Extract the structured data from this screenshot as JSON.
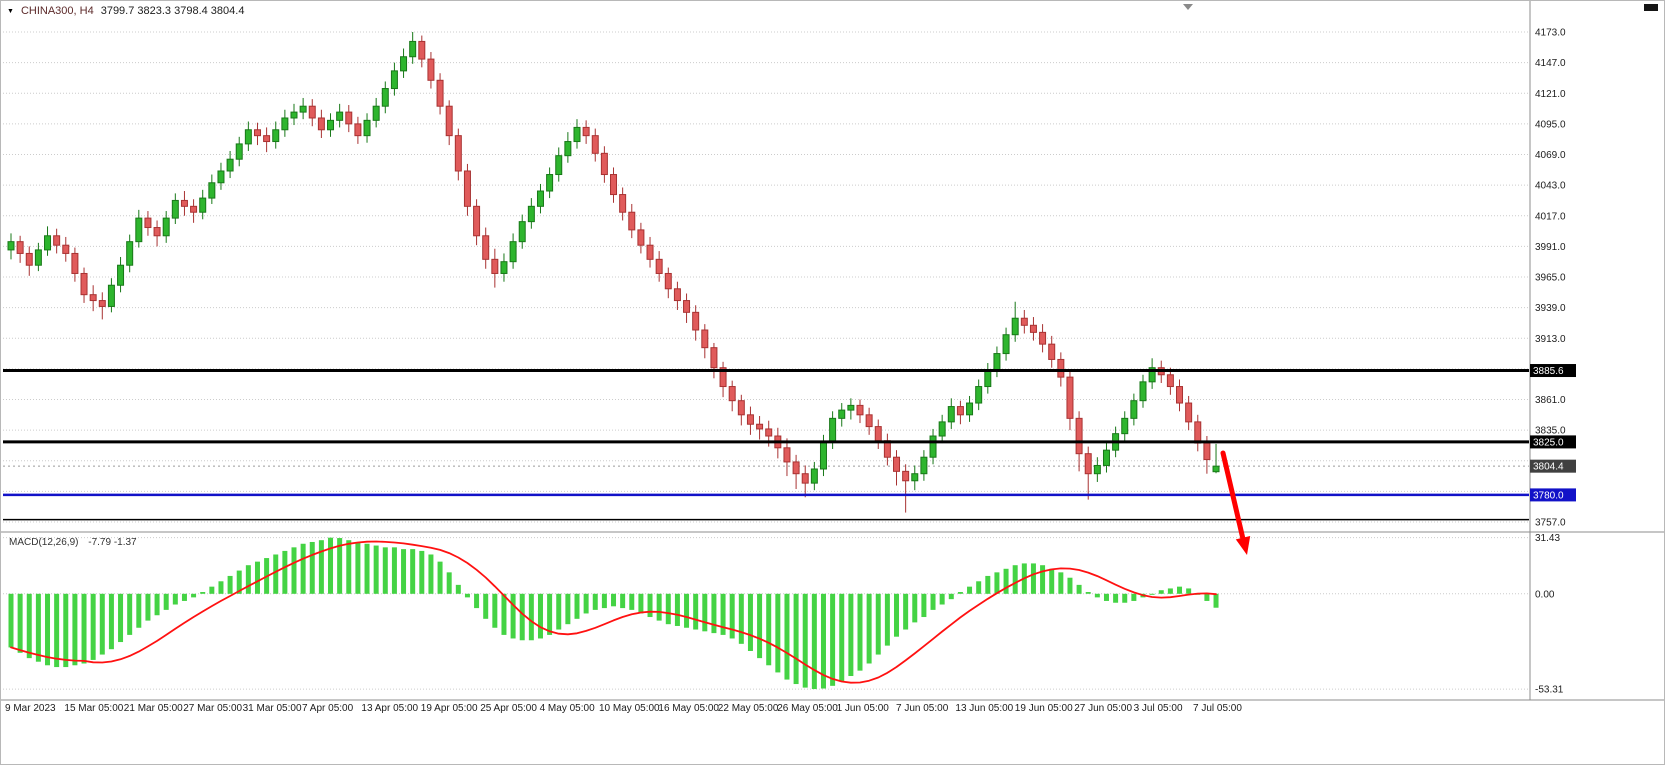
{
  "header": {
    "symbol_period": "CHINA300, H4",
    "ohlc": "3799.7 3823.3 3798.4 3804.4"
  },
  "colors": {
    "bull": "#2eb52e",
    "bull_border": "#187818",
    "bear": "#e05b5b",
    "bear_border": "#a83232",
    "macd_hist": "#44d344",
    "macd_signal": "#ff1111",
    "grid": "#cccccc",
    "arrow": "#ff0000"
  },
  "chart_data": {
    "type": "candlestick",
    "title": "CHINA300, H4",
    "symbol": "CHINA300",
    "timeframe": "H4",
    "grid": "horizontal-dotted",
    "current_bar": {
      "open": 3799.7,
      "high": 3823.3,
      "low": 3798.4,
      "close": 3804.4
    },
    "price_axis": {
      "min": 3757.0,
      "max": 4173.0,
      "tick_step": 26,
      "all_ticks": [
        4173,
        4147,
        4121,
        4095,
        4069,
        4043,
        4017,
        3991,
        3965,
        3939,
        3913,
        3887,
        3861,
        3835,
        3809,
        3783,
        3757
      ],
      "visible_labels": [
        "4173.0",
        "4147.0",
        "4121.0",
        "4095.0",
        "4069.0",
        "4043.0",
        "4017.0",
        "3991.0",
        "3965.0",
        "3939.0",
        "3913.0",
        "3861.0",
        "3835.0",
        "3757.0"
      ]
    },
    "levels": [
      {
        "value": 3885.6,
        "label": "3885.6",
        "color": "#000000",
        "width": 3
      },
      {
        "value": 3825.0,
        "label": "3825.0",
        "color": "#000000",
        "width": 3
      },
      {
        "value": 3780.0,
        "label": "3780.0",
        "color": "#1212c8",
        "width": 2.5
      },
      {
        "value": 3759.0,
        "label": "",
        "color": "#000000",
        "width": 1.5
      }
    ],
    "current_price": {
      "value": 3804.4,
      "label": "3804.4",
      "color": "#404040"
    },
    "candles": [
      [
        3988,
        4002,
        3980,
        3995
      ],
      [
        3995,
        4000,
        3977,
        3985
      ],
      [
        3985,
        3991,
        3966,
        3975
      ],
      [
        3975,
        3994,
        3970,
        3988
      ],
      [
        3988,
        4008,
        3983,
        4000
      ],
      [
        4000,
        4006,
        3985,
        3992
      ],
      [
        3992,
        3999,
        3978,
        3985
      ],
      [
        3985,
        3990,
        3961,
        3968
      ],
      [
        3968,
        3973,
        3943,
        3950
      ],
      [
        3950,
        3958,
        3936,
        3945
      ],
      [
        3945,
        3952,
        3929,
        3940
      ],
      [
        3940,
        3964,
        3935,
        3958
      ],
      [
        3958,
        3982,
        3952,
        3975
      ],
      [
        3975,
        4001,
        3969,
        3995
      ],
      [
        3995,
        4022,
        3990,
        4015
      ],
      [
        4015,
        4021,
        4000,
        4007
      ],
      [
        4007,
        4013,
        3991,
        4000
      ],
      [
        4000,
        4021,
        3994,
        4015
      ],
      [
        4015,
        4036,
        4010,
        4030
      ],
      [
        4030,
        4038,
        4017,
        4025
      ],
      [
        4025,
        4031,
        4011,
        4020
      ],
      [
        4020,
        4039,
        4014,
        4032
      ],
      [
        4032,
        4052,
        4027,
        4045
      ],
      [
        4045,
        4062,
        4039,
        4055
      ],
      [
        4055,
        4072,
        4049,
        4065
      ],
      [
        4065,
        4084,
        4059,
        4078
      ],
      [
        4078,
        4097,
        4072,
        4090
      ],
      [
        4090,
        4096,
        4077,
        4085
      ],
      [
        4085,
        4092,
        4071,
        4080
      ],
      [
        4080,
        4097,
        4074,
        4090
      ],
      [
        4090,
        4107,
        4084,
        4100
      ],
      [
        4100,
        4112,
        4094,
        4105
      ],
      [
        4105,
        4117,
        4099,
        4110
      ],
      [
        4110,
        4116,
        4093,
        4100
      ],
      [
        4100,
        4107,
        4083,
        4090
      ],
      [
        4090,
        4104,
        4084,
        4098
      ],
      [
        4098,
        4112,
        4092,
        4105
      ],
      [
        4105,
        4111,
        4088,
        4095
      ],
      [
        4095,
        4101,
        4078,
        4085
      ],
      [
        4085,
        4104,
        4079,
        4098
      ],
      [
        4098,
        4117,
        4092,
        4110
      ],
      [
        4110,
        4131,
        4104,
        4125
      ],
      [
        4125,
        4147,
        4119,
        4140
      ],
      [
        4140,
        4159,
        4134,
        4152
      ],
      [
        4152,
        4173,
        4146,
        4165
      ],
      [
        4165,
        4170,
        4143,
        4150
      ],
      [
        4150,
        4156,
        4125,
        4132
      ],
      [
        4132,
        4138,
        4103,
        4110
      ],
      [
        4110,
        4115,
        4077,
        4085
      ],
      [
        4085,
        4091,
        4047,
        4055
      ],
      [
        4055,
        4061,
        4017,
        4025
      ],
      [
        4025,
        4031,
        3992,
        4000
      ],
      [
        4000,
        4007,
        3972,
        3980
      ],
      [
        3980,
        3989,
        3956,
        3968
      ],
      [
        3968,
        3985,
        3961,
        3978
      ],
      [
        3978,
        4002,
        3972,
        3995
      ],
      [
        3995,
        4018,
        3989,
        4012
      ],
      [
        4012,
        4032,
        4006,
        4025
      ],
      [
        4025,
        4044,
        4019,
        4038
      ],
      [
        4038,
        4058,
        4032,
        4052
      ],
      [
        4052,
        4075,
        4046,
        4068
      ],
      [
        4068,
        4088,
        4062,
        4080
      ],
      [
        4080,
        4099,
        4074,
        4092
      ],
      [
        4092,
        4098,
        4078,
        4085
      ],
      [
        4085,
        4091,
        4063,
        4070
      ],
      [
        4070,
        4076,
        4045,
        4052
      ],
      [
        4052,
        4058,
        4028,
        4035
      ],
      [
        4035,
        4041,
        4013,
        4020
      ],
      [
        4020,
        4027,
        3998,
        4005
      ],
      [
        4005,
        4011,
        3985,
        3992
      ],
      [
        3992,
        3999,
        3973,
        3980
      ],
      [
        3980,
        3987,
        3961,
        3968
      ],
      [
        3968,
        3973,
        3947,
        3955
      ],
      [
        3955,
        3961,
        3937,
        3945
      ],
      [
        3945,
        3951,
        3926,
        3935
      ],
      [
        3935,
        3941,
        3911,
        3920
      ],
      [
        3920,
        3925,
        3896,
        3905
      ],
      [
        3905,
        3909,
        3879,
        3888
      ],
      [
        3888,
        3893,
        3863,
        3872
      ],
      [
        3872,
        3877,
        3851,
        3860
      ],
      [
        3860,
        3865,
        3839,
        3848
      ],
      [
        3848,
        3855,
        3831,
        3840
      ],
      [
        3840,
        3847,
        3827,
        3836
      ],
      [
        3836,
        3843,
        3821,
        3830
      ],
      [
        3830,
        3837,
        3811,
        3820
      ],
      [
        3820,
        3828,
        3796,
        3808
      ],
      [
        3808,
        3814,
        3785,
        3798
      ],
      [
        3798,
        3805,
        3778,
        3790
      ],
      [
        3790,
        3808,
        3784,
        3802
      ],
      [
        3802,
        3831,
        3796,
        3825
      ],
      [
        3825,
        3851,
        3819,
        3845
      ],
      [
        3845,
        3858,
        3838,
        3852
      ],
      [
        3852,
        3862,
        3844,
        3856
      ],
      [
        3856,
        3861,
        3841,
        3848
      ],
      [
        3848,
        3854,
        3831,
        3838
      ],
      [
        3838,
        3844,
        3819,
        3826
      ],
      [
        3826,
        3832,
        3805,
        3812
      ],
      [
        3812,
        3818,
        3788,
        3800
      ],
      [
        3800,
        3806,
        3765,
        3792
      ],
      [
        3792,
        3805,
        3784,
        3798
      ],
      [
        3798,
        3818,
        3792,
        3812
      ],
      [
        3812,
        3836,
        3806,
        3830
      ],
      [
        3830,
        3848,
        3824,
        3842
      ],
      [
        3842,
        3862,
        3836,
        3855
      ],
      [
        3855,
        3860,
        3840,
        3848
      ],
      [
        3848,
        3864,
        3842,
        3858
      ],
      [
        3858,
        3878,
        3852,
        3872
      ],
      [
        3872,
        3892,
        3866,
        3886
      ],
      [
        3886,
        3906,
        3880,
        3900
      ],
      [
        3900,
        3922,
        3894,
        3916
      ],
      [
        3916,
        3944,
        3910,
        3930
      ],
      [
        3930,
        3937,
        3917,
        3924
      ],
      [
        3924,
        3931,
        3911,
        3918
      ],
      [
        3918,
        3925,
        3901,
        3908
      ],
      [
        3908,
        3915,
        3888,
        3895
      ],
      [
        3895,
        3901,
        3872,
        3880
      ],
      [
        3880,
        3886,
        3835,
        3845
      ],
      [
        3845,
        3851,
        3800,
        3815
      ],
      [
        3815,
        3821,
        3776,
        3798
      ],
      [
        3798,
        3812,
        3791,
        3805
      ],
      [
        3805,
        3824,
        3799,
        3818
      ],
      [
        3818,
        3838,
        3812,
        3832
      ],
      [
        3832,
        3851,
        3826,
        3845
      ],
      [
        3845,
        3866,
        3839,
        3860
      ],
      [
        3860,
        3882,
        3854,
        3876
      ],
      [
        3876,
        3896,
        3870,
        3888
      ],
      [
        3888,
        3894,
        3875,
        3882
      ],
      [
        3882,
        3888,
        3865,
        3872
      ],
      [
        3872,
        3878,
        3851,
        3858
      ],
      [
        3858,
        3864,
        3835,
        3842
      ],
      [
        3842,
        3848,
        3817,
        3824
      ],
      [
        3824,
        3830,
        3798,
        3810
      ],
      [
        3799.7,
        3823.3,
        3798.4,
        3804.4
      ]
    ],
    "macd": {
      "label": "MACD(12,26,9)",
      "values_text": "-7.79 -1.37",
      "macd_value": -7.79,
      "signal_value": -1.37,
      "axis": [
        {
          "value": 31.43,
          "label": "31.43"
        },
        {
          "value": 0,
          "label": "0.00"
        },
        {
          "value": -53.31,
          "label": "-53.31"
        }
      ],
      "values": [
        -30,
        -33,
        -36,
        -38,
        -40,
        -41,
        -41,
        -40,
        -39,
        -37,
        -34,
        -31,
        -27,
        -23,
        -19,
        -15,
        -12,
        -9,
        -6,
        -4,
        -2,
        1,
        4,
        7,
        10,
        13,
        16,
        18,
        20,
        22,
        24,
        26,
        28,
        29,
        30,
        31.4,
        31.2,
        30,
        29,
        28,
        27,
        26,
        26,
        25,
        25,
        24,
        22,
        18,
        12,
        5,
        -2,
        -8,
        -14,
        -19,
        -23,
        -25,
        -26,
        -26,
        -25,
        -23,
        -20,
        -17,
        -14,
        -11,
        -9,
        -8,
        -7,
        -8,
        -9,
        -11,
        -13,
        -15,
        -17,
        -18,
        -19,
        -20,
        -21,
        -22,
        -23,
        -25,
        -28,
        -32,
        -36,
        -40,
        -44,
        -48,
        -50.5,
        -52.5,
        -53.3,
        -53,
        -51.5,
        -49,
        -46,
        -43,
        -39,
        -34,
        -29,
        -24,
        -20,
        -16,
        -13,
        -9,
        -6,
        -3,
        1,
        4,
        7,
        10,
        12,
        14,
        16,
        17,
        17,
        16,
        14,
        12,
        9,
        5,
        1,
        -2,
        -4,
        -5,
        -5,
        -4,
        -2,
        0,
        2,
        3,
        4,
        3,
        0,
        -4,
        -7.79
      ]
    },
    "dates": [
      "9 Mar 2023",
      "15 Mar 05:00",
      "21 Mar 05:00",
      "27 Mar 05:00",
      "31 Mar 05:00",
      "7 Apr 05:00",
      "13 Apr 05:00",
      "19 Apr 05:00",
      "25 Apr 05:00",
      "4 May 05:00",
      "10 May 05:00",
      "16 May 05:00",
      "22 May 05:00",
      "26 May 05:00",
      "1 Jun 05:00",
      "7 Jun 05:00",
      "13 Jun 05:00",
      "19 Jun 05:00",
      "27 Jun 05:00",
      "3 Jul 05:00",
      "7 Jul 05:00"
    ],
    "annotation": {
      "shape": "arrow",
      "direction": "down-right",
      "color": "#ff0000"
    }
  }
}
